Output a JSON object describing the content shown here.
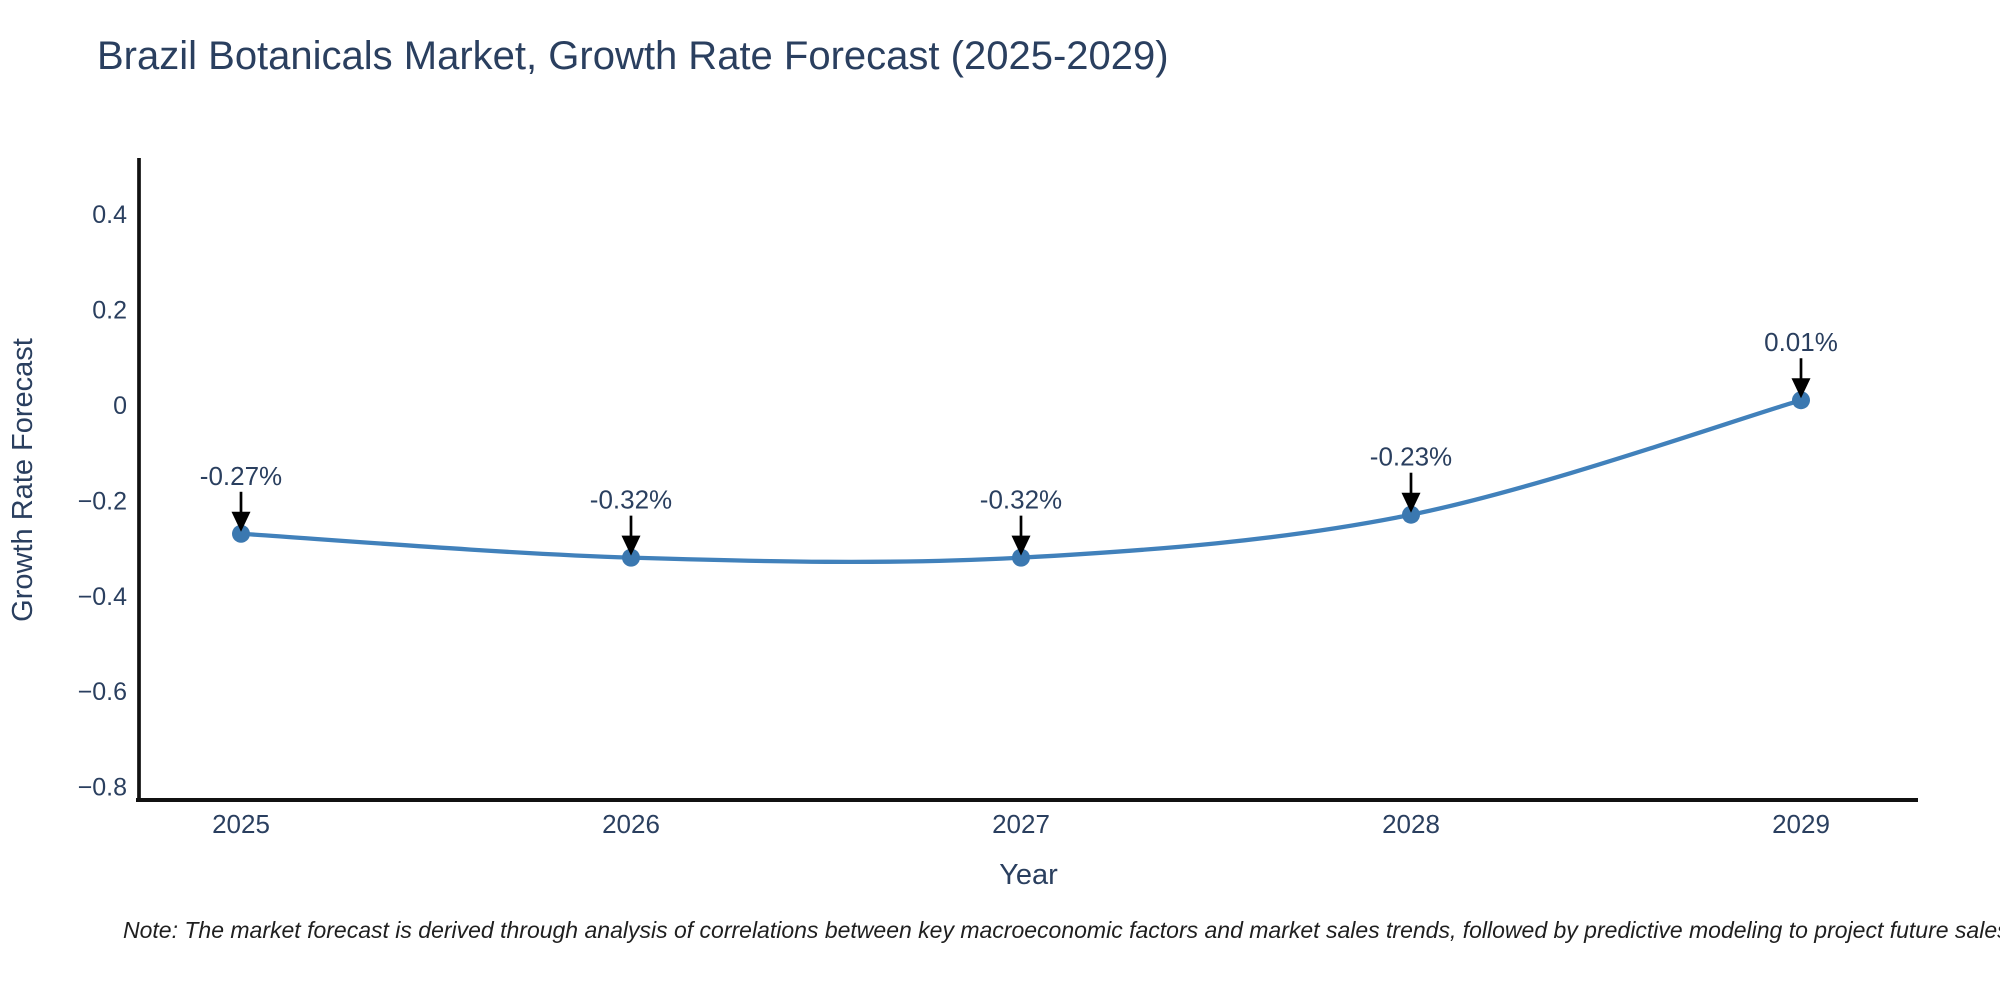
{
  "note": "Note: The market forecast is derived through analysis of correlations between key macroeconomic factors and market sales trends, followed by predictive modeling to project future sales",
  "chart_data": {
    "type": "line",
    "title": "Brazil Botanicals Market, Growth Rate Forecast (2025-2029)",
    "xlabel": "Year",
    "ylabel": "Growth Rate Forecast",
    "x": [
      2025,
      2026,
      2027,
      2028,
      2029
    ],
    "values": [
      -0.27,
      -0.32,
      -0.32,
      -0.23,
      0.01
    ],
    "point_labels": [
      "-0.27%",
      "-0.32%",
      "-0.32%",
      "-0.23%",
      "0.01%"
    ],
    "xtick_labels": [
      "2025",
      "2026",
      "2027",
      "2028",
      "2029"
    ],
    "yticks": {
      "values": [
        0.4,
        0.2,
        0,
        -0.2,
        -0.4,
        -0.6,
        -0.8
      ],
      "labels": [
        "0.4",
        "0.2",
        "0",
        "−0.2",
        "−0.4",
        "−0.6",
        "−0.8"
      ]
    },
    "ylim": [
      -0.84,
      0.52
    ],
    "line_shape": "spline",
    "grid": false,
    "legend_position": "none",
    "annotation_arrows": true,
    "colors": {
      "line": "#4181bb",
      "marker": "#3b78b0",
      "axis": "#111111",
      "tick_text": "#2a3f5f",
      "annotation_text": "#2a3f5f",
      "arrow": "#000000",
      "title_text": "#2a3f5f"
    }
  }
}
